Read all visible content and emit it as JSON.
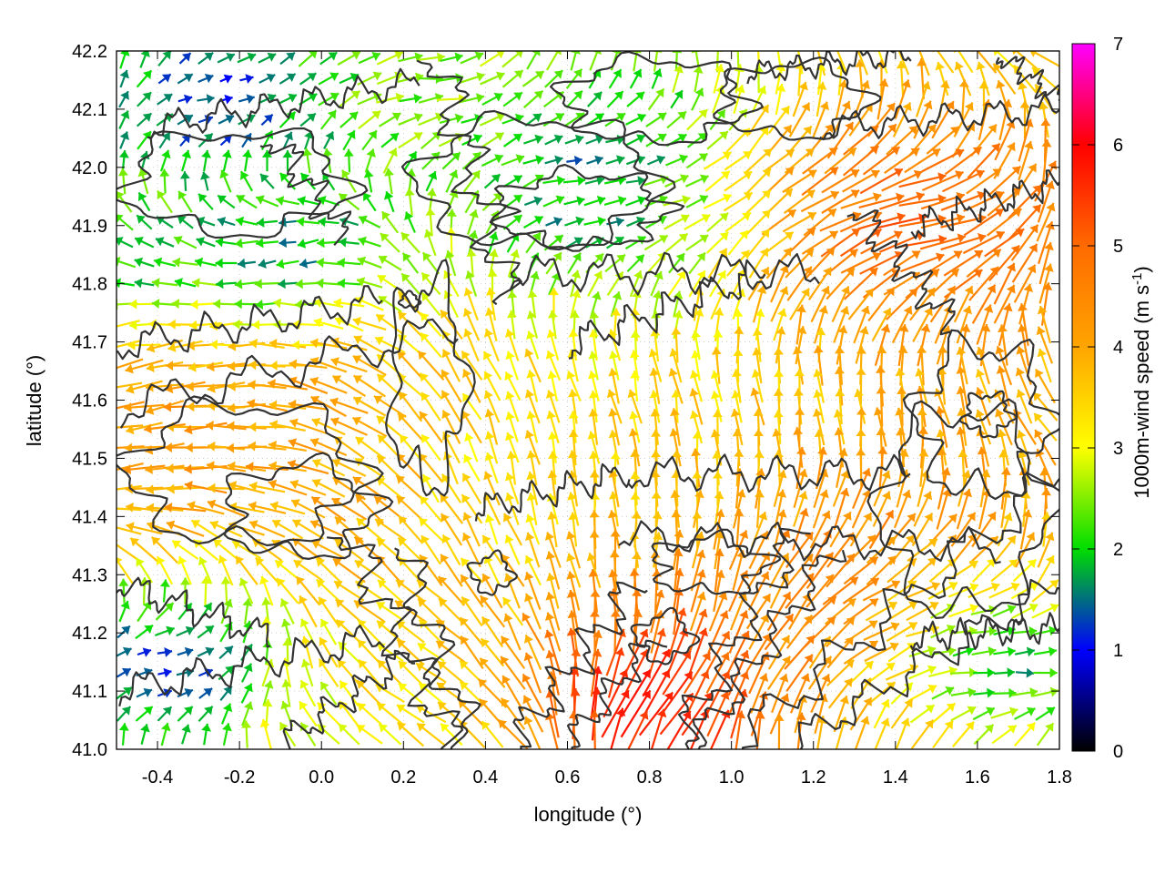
{
  "chart_data": {
    "type": "vector-field",
    "xlabel": "longitude (°)",
    "ylabel": "latitude (°)",
    "colorbar_label_main": "1000m-wind speed (m s",
    "colorbar_label_sup": "-1",
    "colorbar_label_close": ")",
    "xlim": [
      -0.5,
      1.8
    ],
    "ylim": [
      41.0,
      42.2
    ],
    "xticks": [
      -0.4,
      -0.2,
      0.0,
      0.2,
      0.4,
      0.6,
      0.8,
      1.0,
      1.2,
      1.4,
      1.6,
      1.8
    ],
    "xtick_labels": [
      "-0.4",
      "-0.2",
      "0.0",
      "0.2",
      "0.4",
      "0.6",
      "0.8",
      "1.0",
      "1.2",
      "1.4",
      "1.6",
      "1.8"
    ],
    "yticks": [
      41.0,
      41.1,
      41.2,
      41.3,
      41.4,
      41.5,
      41.6,
      41.7,
      41.8,
      41.9,
      42.0,
      42.1,
      42.2
    ],
    "ytick_labels": [
      "41.0",
      "41.1",
      "41.2",
      "41.3",
      "41.4",
      "41.5",
      "41.6",
      "41.7",
      "41.8",
      "41.9",
      "42.0",
      "42.1",
      "42.2"
    ],
    "colorbar": {
      "range": [
        0,
        7
      ],
      "ticks": [
        0,
        1,
        2,
        3,
        4,
        5,
        6,
        7
      ],
      "tick_labels": [
        "0",
        "1",
        "2",
        "3",
        "4",
        "5",
        "6",
        "7"
      ],
      "stops": [
        {
          "v": 0,
          "color": "#000000"
        },
        {
          "v": 1,
          "color": "#0000ff"
        },
        {
          "v": 2,
          "color": "#00dd00"
        },
        {
          "v": 3,
          "color": "#ffff00"
        },
        {
          "v": 4,
          "color": "#ffa500"
        },
        {
          "v": 5,
          "color": "#ff6a00"
        },
        {
          "v": 6,
          "color": "#ff0000"
        },
        {
          "v": 7,
          "color": "#ff00ff"
        }
      ]
    },
    "grid": true,
    "contour_color": "#333333",
    "regions": [
      {
        "area": "northwest",
        "lon": [
          -0.5,
          0.15
        ],
        "lat": [
          41.95,
          42.2
        ],
        "speed": 1.0,
        "direction": "east"
      },
      {
        "area": "north-centre",
        "lon": [
          0.3,
          1.0
        ],
        "lat": [
          41.8,
          42.1
        ],
        "speed": 0.8,
        "direction": "east"
      },
      {
        "area": "north strip",
        "lon": [
          0.2,
          1.8
        ],
        "lat": [
          42.1,
          42.2
        ],
        "speed": 2.7,
        "direction": "east"
      },
      {
        "area": "northeast",
        "lon": [
          1.3,
          1.8
        ],
        "lat": [
          41.7,
          42.05
        ],
        "speed": 5.0,
        "direction": "east-northeast"
      },
      {
        "area": "west",
        "lon": [
          -0.5,
          0.3
        ],
        "lat": [
          41.3,
          41.95
        ],
        "speed": 3.5,
        "direction": "west-northwest"
      },
      {
        "area": "central",
        "lon": [
          0.4,
          1.2
        ],
        "lat": [
          41.3,
          41.75
        ],
        "speed": 3.2,
        "direction": "north-northwest"
      },
      {
        "area": "southeast",
        "lon": [
          0.9,
          1.8
        ],
        "lat": [
          41.0,
          41.6
        ],
        "speed": 4.5,
        "direction": "northeast"
      },
      {
        "area": "south-centre",
        "lon": [
          0.5,
          0.9
        ],
        "lat": [
          41.0,
          41.2
        ],
        "speed": 6.5,
        "direction": "northeast"
      },
      {
        "area": "southwest",
        "lon": [
          -0.5,
          0.1
        ],
        "lat": [
          41.0,
          41.2
        ],
        "speed": 1.3,
        "direction": "east"
      },
      {
        "area": "far east edge",
        "lon": [
          1.5,
          1.8
        ],
        "lat": [
          41.0,
          41.25
        ],
        "speed": 1.8,
        "direction": "east"
      }
    ]
  }
}
